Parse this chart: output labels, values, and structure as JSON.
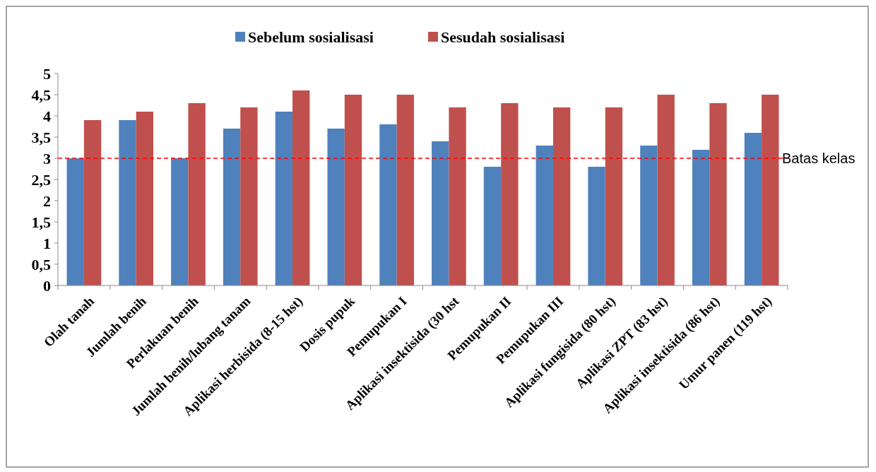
{
  "chart_data": {
    "type": "bar",
    "categories": [
      "Olah tanah",
      "Jumlah benih",
      "Perlakuan benih",
      "Jumlah benih/lubang tanam",
      "Aplikasi herbisida (8-15 hst)",
      "Dosis pupuk",
      "Pemupukan I",
      "Aplikasi insektisida (30 hst",
      "Pemupukan II",
      "Pemupukan III",
      "Aplikasi fungisida (80 hst)",
      "Aplikasi ZPT (83 hst)",
      "Aplikasi insektisida (86 hst)",
      "Umur panen (119 hst)"
    ],
    "series": [
      {
        "name": "Sebelum sosialisasi",
        "color": "#4f81bd",
        "values": [
          3.0,
          3.9,
          3.0,
          3.7,
          4.1,
          3.7,
          3.8,
          3.4,
          2.8,
          3.3,
          2.8,
          3.3,
          3.2,
          3.6
        ]
      },
      {
        "name": "Sesudah sosialisasi",
        "color": "#c0504d",
        "values": [
          3.9,
          4.1,
          4.3,
          4.2,
          4.6,
          4.5,
          4.5,
          4.2,
          4.3,
          4.2,
          4.2,
          4.5,
          4.3,
          4.5
        ]
      }
    ],
    "ylim": [
      0,
      5
    ],
    "yticks": [
      0,
      {
        "value": 0.5,
        "label": "0,5"
      },
      1,
      {
        "value": 1.5,
        "label": "1,5"
      },
      2,
      {
        "value": 2.5,
        "label": "2,5"
      },
      3,
      {
        "value": 3.5,
        "label": "3,5"
      },
      4,
      {
        "value": 4.5,
        "label": "4,5"
      },
      5
    ],
    "ref_lines": [
      {
        "axis": "y",
        "value": 3,
        "label": "Batas kelas",
        "color": "#ff0000",
        "line_style": "dashed"
      }
    ],
    "legend": "top",
    "grid": false
  }
}
